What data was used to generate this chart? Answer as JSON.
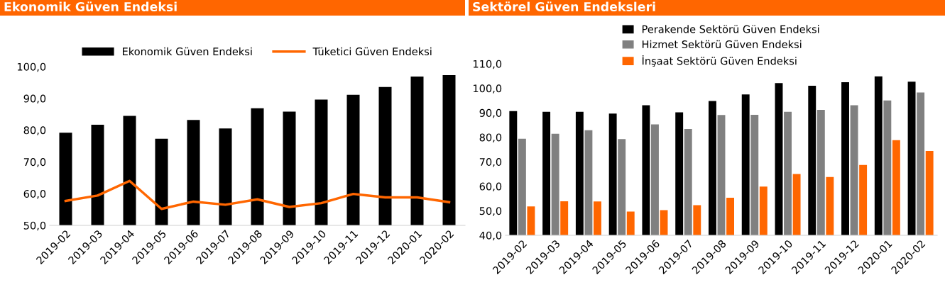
{
  "chart_data": [
    {
      "type": "bar",
      "title": "Ekonomik Güven Endeksi",
      "categories": [
        "2019-02",
        "2019-03",
        "2019-04",
        "2019-05",
        "2019-06",
        "2019-07",
        "2019-08",
        "2019-09",
        "2019-10",
        "2019-11",
        "2019-12",
        "2020-01",
        "2020-02"
      ],
      "series": [
        {
          "name": "Ekonomik Güven Endeksi",
          "color": "#000000",
          "values": [
            79.2,
            81.7,
            84.5,
            77.3,
            83.2,
            80.5,
            86.9,
            85.8,
            89.6,
            91.1,
            93.6,
            96.9,
            97.3
          ]
        },
        {
          "name": "Tüketici Güven Endeksi",
          "type": "line",
          "color": "#ff6600",
          "values": [
            57.7,
            59.4,
            64.0,
            55.2,
            57.5,
            56.5,
            58.2,
            55.8,
            57.0,
            59.9,
            58.8,
            58.8,
            57.3
          ]
        }
      ],
      "ylim": [
        50,
        100
      ],
      "yticks": [
        {
          "value": 50,
          "label": "50,0"
        },
        {
          "value": 60,
          "label": "60,0"
        },
        {
          "value": 70,
          "label": "70,0"
        },
        {
          "value": 80,
          "label": "80,0"
        },
        {
          "value": 90,
          "label": "90,0"
        },
        {
          "value": 100,
          "label": "100,0"
        }
      ],
      "grid": false,
      "legend": "top",
      "marker": "none",
      "line_style": "solid"
    },
    {
      "type": "bar",
      "title": "Sektörel Güven Endeksleri",
      "categories": [
        "2019-02",
        "2019-03",
        "2019-04",
        "2019-05",
        "2019-06",
        "2019-07",
        "2019-08",
        "2019-09",
        "2019-10",
        "2019-11",
        "2019-12",
        "2020-01",
        "2020-02"
      ],
      "series": [
        {
          "name": "Perakende Sektörü Güven Endeksi",
          "color": "#000000",
          "values": [
            90.7,
            90.4,
            90.4,
            89.7,
            93.1,
            90.2,
            94.8,
            97.5,
            102.1,
            101.0,
            102.5,
            104.9,
            102.7
          ]
        },
        {
          "name": "Hizmet Sektörü Güven Endeksi",
          "color": "#808080",
          "values": [
            79.4,
            81.4,
            82.9,
            79.3,
            85.3,
            83.4,
            89.1,
            89.2,
            90.4,
            91.2,
            93.1,
            95.0,
            98.3
          ]
        },
        {
          "name": "İnşaat Sektörü Güven Endeksi",
          "color": "#ff6600",
          "values": [
            51.8,
            53.9,
            53.8,
            49.7,
            50.3,
            52.3,
            55.3,
            59.9,
            65.0,
            63.8,
            68.7,
            78.8,
            74.4
          ]
        }
      ],
      "ylim": [
        40,
        110
      ],
      "yticks": [
        {
          "value": 40,
          "label": "40,0"
        },
        {
          "value": 50,
          "label": "50,0"
        },
        {
          "value": 60,
          "label": "60,0"
        },
        {
          "value": 70,
          "label": "70,0"
        },
        {
          "value": 80,
          "label": "80,0"
        },
        {
          "value": 90,
          "label": "90,0"
        },
        {
          "value": 100,
          "label": "100,0"
        },
        {
          "value": 110,
          "label": "110,0"
        }
      ],
      "grid": false,
      "legend": "top"
    }
  ]
}
